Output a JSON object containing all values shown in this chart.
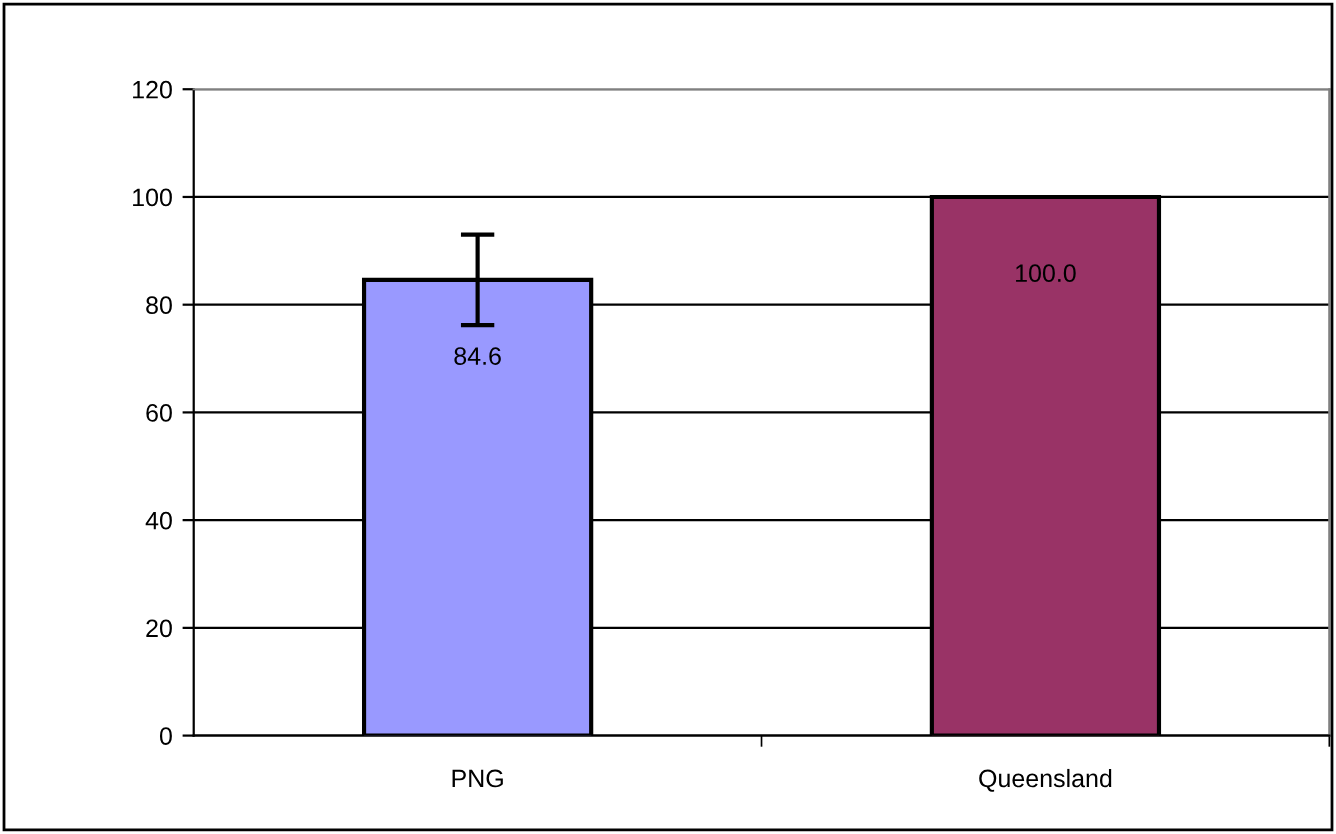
{
  "chart_data": {
    "type": "bar",
    "categories": [
      "PNG",
      "Queensland"
    ],
    "series": [
      {
        "values": [
          84.6,
          100.0
        ],
        "value_labels": [
          "84.6",
          "100.0"
        ],
        "colors": [
          "#9999ff",
          "#993366"
        ],
        "errors": [
          8.4,
          0
        ]
      }
    ],
    "ylim": [
      0,
      120
    ],
    "yticks": [
      0,
      20,
      40,
      60,
      80,
      100,
      120
    ],
    "grid": "y",
    "legend": false
  }
}
